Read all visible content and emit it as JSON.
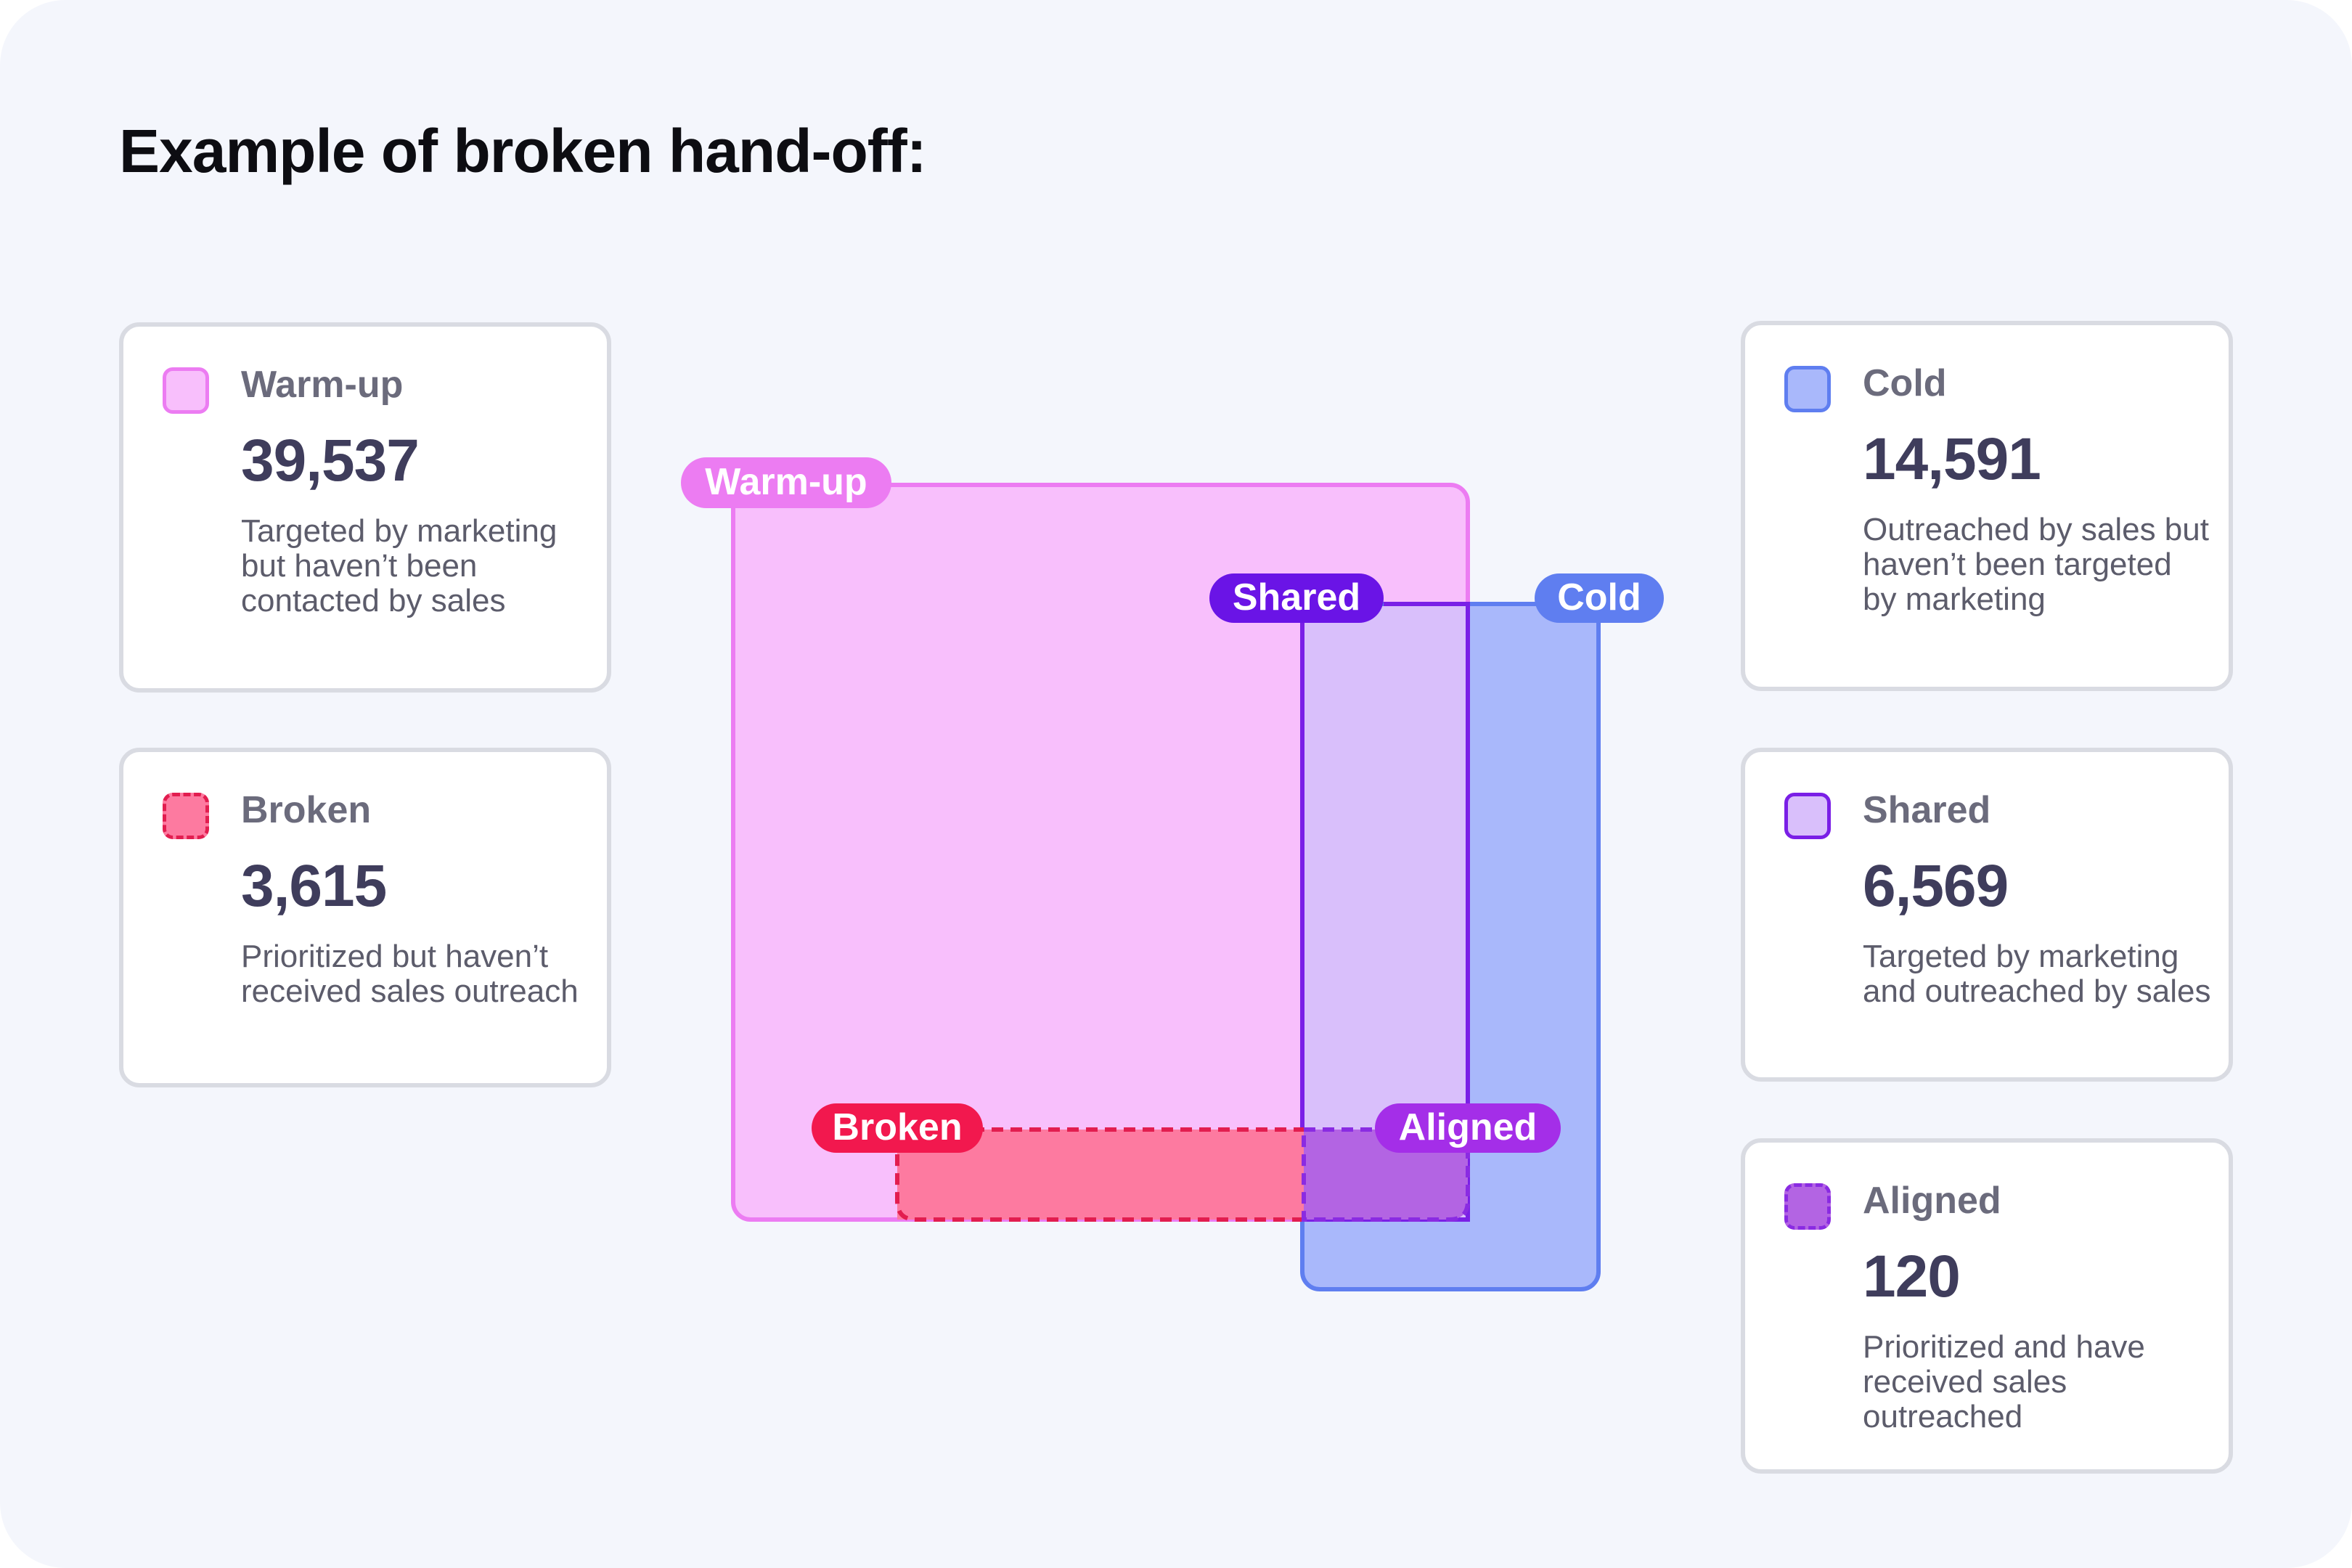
{
  "title": "Example of broken hand-off:",
  "cards": {
    "warmup": {
      "label": "Warm-up",
      "value": "39,537",
      "description": "Targeted by marketing but haven’t been contacted by sales"
    },
    "broken": {
      "label": "Broken",
      "value": "3,615",
      "description": "Prioritized but haven’t received sales outreach"
    },
    "cold": {
      "label": "Cold",
      "value": "14,591",
      "description": "Outreached by sales but haven’t been targeted by marketing"
    },
    "shared": {
      "label": "Shared",
      "value": "6,569",
      "description": "Targeted by marketing and outreached by sales"
    },
    "aligned": {
      "label": "Aligned",
      "value": "120",
      "description": "Prioritized and have received sales outreached"
    }
  },
  "diagram": {
    "tags": {
      "warmup": "Warm-up",
      "shared": "Shared",
      "cold": "Cold",
      "broken": "Broken",
      "aligned": "Aligned"
    }
  },
  "colors": {
    "warmup_fill": "#f8bffc",
    "warmup_stroke": "#ec7cf2",
    "cold_fill": "#a9b8fb",
    "cold_stroke": "#5f7ef0",
    "shared_fill": "#d9bffb",
    "shared_stroke": "#7a1fe6",
    "broken_fill": "#fd7aa0",
    "broken_stroke": "#e21d4f",
    "aligned_fill": "#b364e3",
    "aligned_stroke": "#8a2be2",
    "shared_tag": "#6a14e6",
    "aligned_tag": "#a42ee8",
    "broken_tag": "#f2184e"
  }
}
